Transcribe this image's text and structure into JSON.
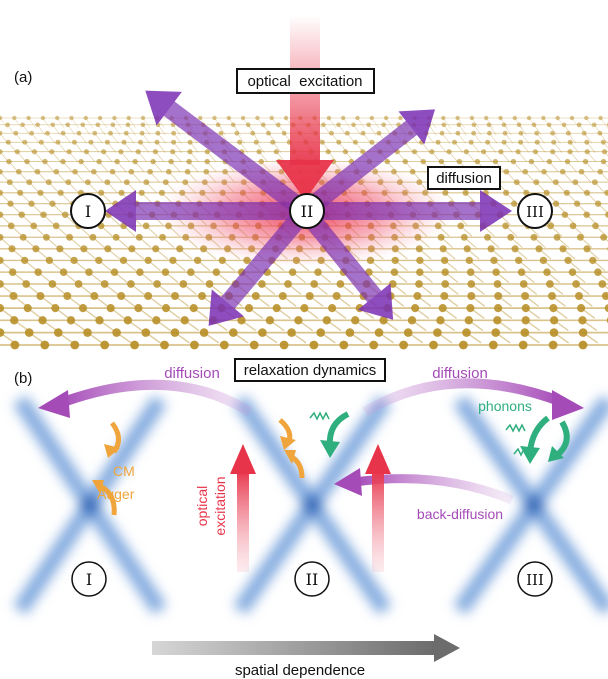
{
  "panel_a": {
    "label": "(a)",
    "optical_excitation": "optical  excitation",
    "diffusion": "diffusion",
    "regions": [
      "I",
      "II",
      "III"
    ]
  },
  "panel_b": {
    "label": "(b)",
    "title": "relaxation dynamics",
    "diffusion_left": "diffusion",
    "diffusion_right": "diffusion",
    "cm": "CM",
    "auger": "Auger",
    "optical_line1": "optical",
    "optical_line2": "excitation",
    "phonons": "phonons",
    "back_diffusion": "back-diffusion",
    "regions": [
      "I",
      "II",
      "III"
    ],
    "spatial": "spatial dependence"
  },
  "colors": {
    "arrow_purple": "#7a2fb3",
    "diffusion_purple": "#a54bb8",
    "excitation_red": "#e8344a",
    "auger_orange": "#f0a53c",
    "phonon_green": "#2fae7e",
    "cone_blue": "#3a78c8",
    "lattice_gold": "#b9912b"
  }
}
